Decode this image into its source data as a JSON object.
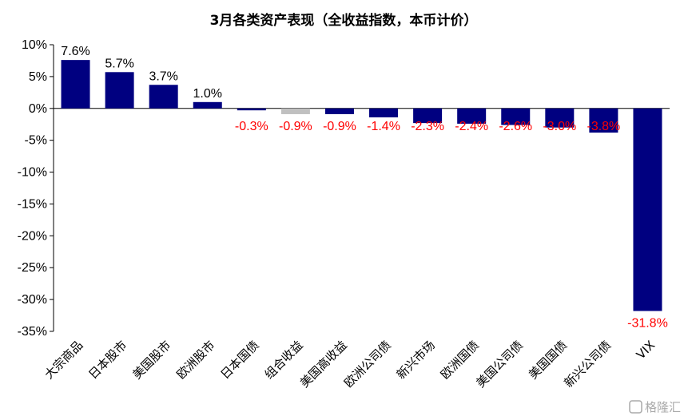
{
  "chart_data": {
    "type": "bar",
    "title": "3月各类资产表现（全收益指数，本币计价）",
    "categories": [
      "大宗商品",
      "日本股市",
      "美国股市",
      "欧洲股市",
      "日本国债",
      "组合收益",
      "美国高收益",
      "欧洲公司债",
      "新兴市场",
      "欧洲国债",
      "美国公司债",
      "美国国债",
      "新兴公司债",
      "VIX"
    ],
    "values": [
      7.6,
      5.7,
      3.7,
      1.0,
      -0.3,
      -0.9,
      -0.9,
      -1.4,
      -2.3,
      -2.4,
      -2.6,
      -3.0,
      -3.8,
      -31.8
    ],
    "data_labels": [
      "7.6%",
      "5.7%",
      "3.7%",
      "1.0%",
      "-0.3%",
      "-0.9%",
      "-0.9%",
      "-1.4%",
      "-2.3%",
      "-2.4%",
      "-2.6%",
      "-3.0%",
      "-3.8%",
      "-31.8%"
    ],
    "bar_colors": [
      "#000080",
      "#000080",
      "#000080",
      "#000080",
      "#000080",
      "#c0c0c0",
      "#000080",
      "#000080",
      "#000080",
      "#000080",
      "#000080",
      "#000080",
      "#000080",
      "#000080"
    ],
    "yticks": [
      10,
      5,
      0,
      -5,
      -10,
      -15,
      -20,
      -25,
      -30,
      -35
    ],
    "ytick_labels": [
      "10%",
      "5%",
      "0%",
      "-5%",
      "-10%",
      "-15%",
      "-20%",
      "-25%",
      "-30%",
      "-35%"
    ],
    "ylim": [
      -35,
      10
    ],
    "grid": false,
    "label_colors": {
      "positive": "#000000",
      "negative": "#ff0000"
    }
  },
  "watermark": {
    "text": "格隆汇"
  }
}
